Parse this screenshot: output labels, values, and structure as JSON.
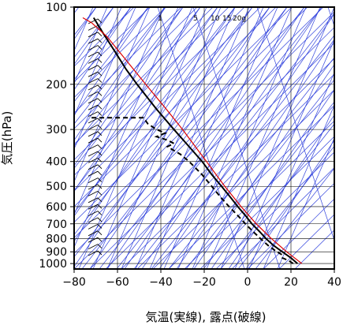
{
  "chart_data": {
    "type": "line",
    "subtype": "skew-t log-p emagram",
    "xlabel": "気温(実線), 露点(破線)",
    "ylabel": "気圧(hPa)",
    "xlim": [
      -80,
      40
    ],
    "ylim": [
      1050,
      100
    ],
    "yscale": "log",
    "x_ticks": [
      -80,
      -60,
      -40,
      -20,
      0,
      20,
      40
    ],
    "y_ticks": [
      100,
      200,
      300,
      400,
      500,
      600,
      700,
      800,
      900,
      1000
    ],
    "grid": true,
    "mixing_ratio_labels": [
      "1",
      "5",
      "10",
      "15",
      "20g"
    ],
    "colors": {
      "temperature": "#000000",
      "dewpoint": "#000000",
      "parcel": "#dd0000",
      "guides": "#3344dd",
      "grid": "#000000"
    },
    "series": [
      {
        "style": "solid",
        "color": "#000000",
        "points": [
          {
            "p": 1000,
            "t": 23
          },
          {
            "p": 975,
            "t": 21.5
          },
          {
            "p": 950,
            "t": 20
          },
          {
            "p": 925,
            "t": 18
          },
          {
            "p": 900,
            "t": 16
          },
          {
            "p": 850,
            "t": 12
          },
          {
            "p": 800,
            "t": 8.5
          },
          {
            "p": 750,
            "t": 5.5
          },
          {
            "p": 700,
            "t": 2
          },
          {
            "p": 650,
            "t": -1
          },
          {
            "p": 600,
            "t": -4.5
          },
          {
            "p": 550,
            "t": -8
          },
          {
            "p": 500,
            "t": -12
          },
          {
            "p": 450,
            "t": -16.5
          },
          {
            "p": 400,
            "t": -21
          },
          {
            "p": 350,
            "t": -27
          },
          {
            "p": 300,
            "t": -34
          },
          {
            "p": 250,
            "t": -42
          },
          {
            "p": 200,
            "t": -51
          },
          {
            "p": 175,
            "t": -56
          },
          {
            "p": 150,
            "t": -61
          },
          {
            "p": 125,
            "t": -67
          },
          {
            "p": 110,
            "t": -71
          }
        ]
      },
      {
        "style": "dashed",
        "color": "#000000",
        "points": [
          {
            "p": 1000,
            "t": 21
          },
          {
            "p": 975,
            "t": 19
          },
          {
            "p": 950,
            "t": 16
          },
          {
            "p": 925,
            "t": 16
          },
          {
            "p": 900,
            "t": 13.5
          },
          {
            "p": 850,
            "t": 9.5
          },
          {
            "p": 800,
            "t": 6
          },
          {
            "p": 750,
            "t": 2.5
          },
          {
            "p": 700,
            "t": -1
          },
          {
            "p": 650,
            "t": -4.5
          },
          {
            "p": 600,
            "t": -8.5
          },
          {
            "p": 550,
            "t": -12.5
          },
          {
            "p": 500,
            "t": -16.5
          },
          {
            "p": 450,
            "t": -21
          },
          {
            "p": 400,
            "t": -27
          },
          {
            "p": 375,
            "t": -31
          },
          {
            "p": 350,
            "t": -37
          },
          {
            "p": 340,
            "t": -34
          },
          {
            "p": 330,
            "t": -37
          },
          {
            "p": 320,
            "t": -42
          },
          {
            "p": 310,
            "t": -38
          },
          {
            "p": 300,
            "t": -42
          },
          {
            "p": 285,
            "t": -46
          },
          {
            "p": 270,
            "t": -48
          },
          {
            "p": 270,
            "t": -73
          }
        ]
      },
      {
        "style": "solid",
        "color": "#dd0000",
        "points": [
          {
            "p": 1000,
            "t": 25
          },
          {
            "p": 900,
            "t": 18
          },
          {
            "p": 800,
            "t": 11
          },
          {
            "p": 700,
            "t": 4
          },
          {
            "p": 600,
            "t": -3
          },
          {
            "p": 500,
            "t": -10.5
          },
          {
            "p": 400,
            "t": -19
          },
          {
            "p": 300,
            "t": -30
          },
          {
            "p": 250,
            "t": -37.5
          },
          {
            "p": 200,
            "t": -47
          },
          {
            "p": 150,
            "t": -59
          },
          {
            "p": 130,
            "t": -65
          },
          {
            "p": 115,
            "t": -72
          },
          {
            "p": 110,
            "t": -76
          }
        ]
      }
    ]
  }
}
